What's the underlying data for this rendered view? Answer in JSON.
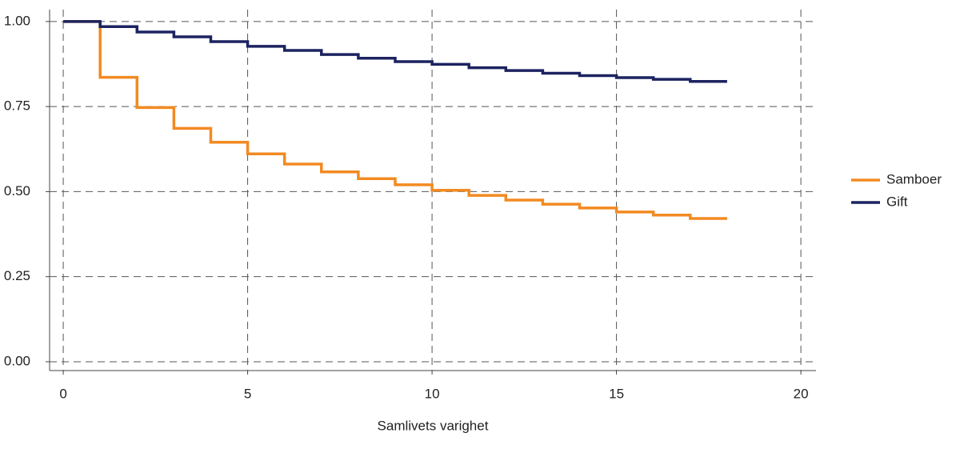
{
  "chart_data": {
    "type": "step",
    "x_label": "Samlivets varighet",
    "x": [
      0,
      1,
      2,
      3,
      4,
      5,
      6,
      7,
      8,
      9,
      10,
      11,
      12,
      13,
      14,
      15,
      16,
      17,
      18
    ],
    "series": [
      {
        "name": "Samboer",
        "color": "#f28a22",
        "values": [
          1.0,
          0.836,
          0.747,
          0.686,
          0.645,
          0.611,
          0.581,
          0.558,
          0.538,
          0.52,
          0.504,
          0.489,
          0.475,
          0.463,
          0.452,
          0.44,
          0.431,
          0.421,
          0.421
        ]
      },
      {
        "name": "Gift",
        "color": "#1c2360",
        "values": [
          1.0,
          0.985,
          0.969,
          0.955,
          0.941,
          0.927,
          0.915,
          0.903,
          0.892,
          0.882,
          0.874,
          0.864,
          0.856,
          0.848,
          0.841,
          0.835,
          0.83,
          0.824,
          0.824
        ]
      }
    ],
    "xlim": [
      -0.37,
      20.41
    ],
    "ylim": [
      -0.026,
      1.035
    ],
    "xticks": [
      0,
      5,
      10,
      15,
      20
    ],
    "yticks": [
      {
        "value": 0,
        "label": "0.00"
      },
      {
        "value": 0.25,
        "label": "0.25"
      },
      {
        "value": 0.5,
        "label": "0.50"
      },
      {
        "value": 0.75,
        "label": "0.75"
      },
      {
        "value": 1,
        "label": "1.00"
      }
    ],
    "grid": true,
    "legend": "right"
  }
}
